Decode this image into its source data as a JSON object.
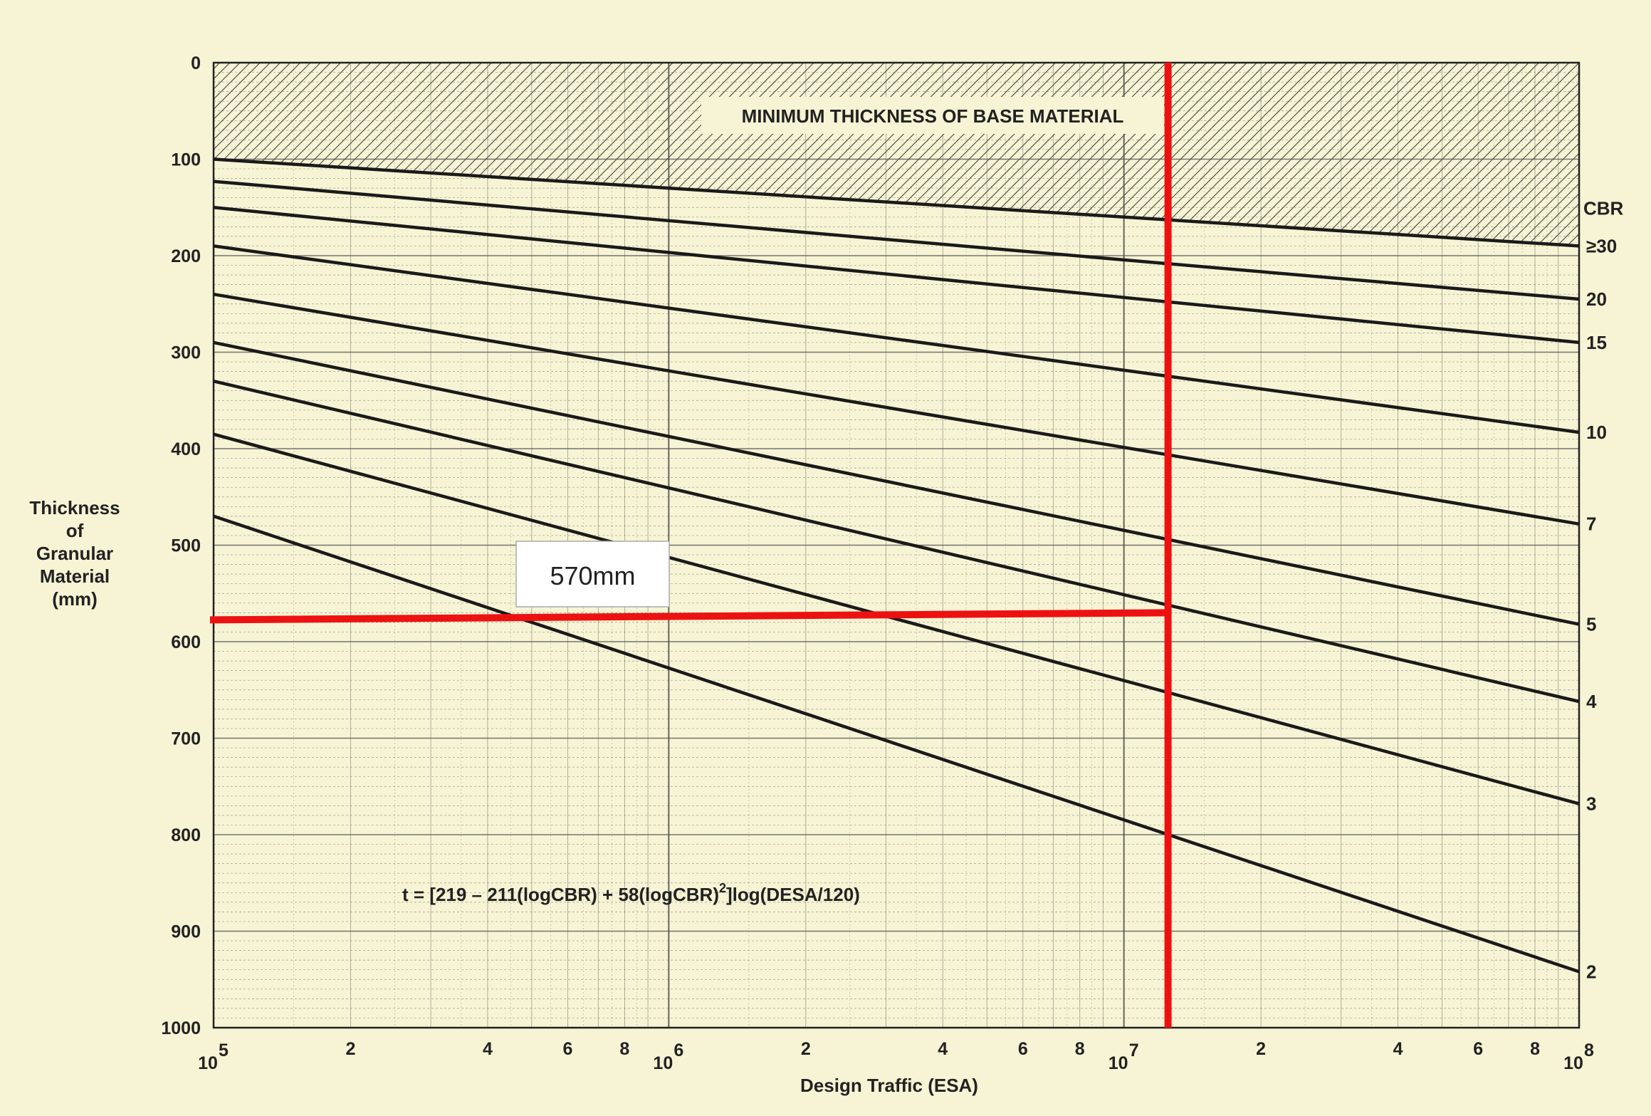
{
  "chart_data": {
    "type": "line",
    "title": "",
    "xlabel": "Design Traffic (ESA)",
    "ylabel": "Thickness of Granular Material (mm)",
    "ylabel_lines": [
      "Thickness",
      "of",
      "Granular",
      "Material",
      "(mm)"
    ],
    "x_scale": "log",
    "xlim": [
      100000,
      100000000
    ],
    "ylim": [
      0,
      1000
    ],
    "y_inverted": true,
    "grid": true,
    "y_ticks": [
      0,
      100,
      200,
      300,
      400,
      500,
      600,
      700,
      800,
      900,
      1000
    ],
    "x_major_ticks": [
      {
        "value": 100000,
        "base": "10",
        "exp": "5"
      },
      {
        "value": 1000000,
        "base": "10",
        "exp": "6"
      },
      {
        "value": 10000000,
        "base": "10",
        "exp": "7"
      },
      {
        "value": 100000000,
        "base": "10",
        "exp": "8"
      }
    ],
    "x_minor_tick_labels": [
      "2",
      "4",
      "6",
      "8"
    ],
    "legend_title": "CBR",
    "series": [
      {
        "name": "≥30",
        "x": [
          100000,
          100000000
        ],
        "y": [
          100,
          190
        ]
      },
      {
        "name": "20",
        "x": [
          100000,
          100000000
        ],
        "y": [
          123,
          245
        ]
      },
      {
        "name": "15",
        "x": [
          100000,
          100000000
        ],
        "y": [
          150,
          290
        ]
      },
      {
        "name": "10",
        "x": [
          100000,
          100000000
        ],
        "y": [
          190,
          383
        ]
      },
      {
        "name": "7",
        "x": [
          100000,
          100000000
        ],
        "y": [
          240,
          478
        ]
      },
      {
        "name": "5",
        "x": [
          100000,
          100000000
        ],
        "y": [
          290,
          582
        ]
      },
      {
        "name": "4",
        "x": [
          100000,
          100000000
        ],
        "y": [
          330,
          662
        ]
      },
      {
        "name": "3",
        "x": [
          100000,
          100000000
        ],
        "y": [
          385,
          768
        ]
      },
      {
        "name": "2",
        "x": [
          100000,
          100000000
        ],
        "y": [
          470,
          942
        ]
      }
    ],
    "shaded_region_label": "MINIMUM THICKNESS OF BASE MATERIAL",
    "formula": {
      "prefix": "t = [219 – 211(logCBR) + 58(logCBR)",
      "sup": "2",
      "suffix": "]log(DESA/120)"
    },
    "highlight": {
      "color": "#ee1111",
      "x_value": 12500000,
      "y_value": 570,
      "label": "570mm"
    },
    "colors": {
      "background": "#f6f4d4",
      "grid": "#555555",
      "curve": "#1a1a1a",
      "highlight": "#ee1111"
    }
  }
}
